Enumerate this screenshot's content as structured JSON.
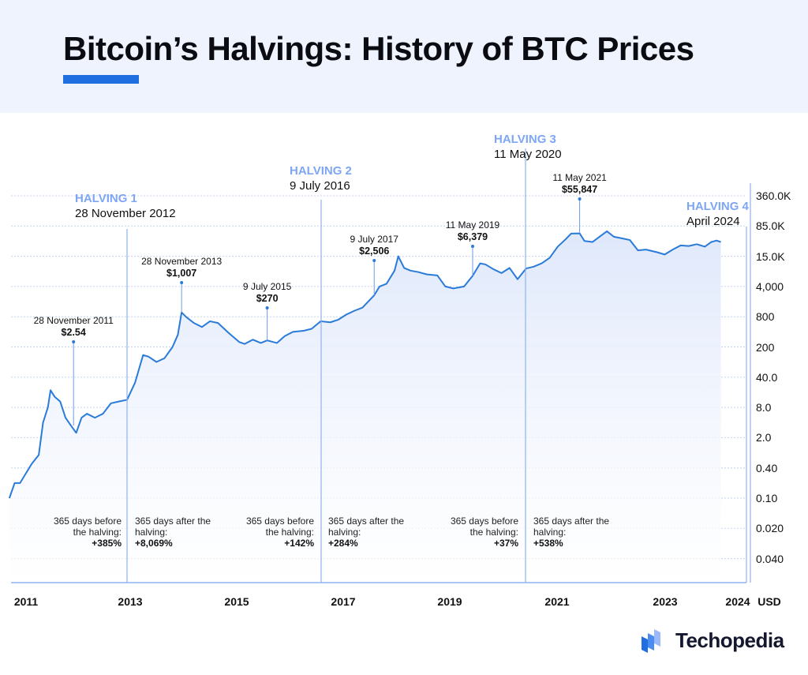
{
  "header": {
    "title": "Bitcoin’s Halvings: History of BTC Prices"
  },
  "brand": {
    "name": "Techopedia",
    "icon": "techopedia-logo-icon"
  },
  "colors": {
    "accent": "#1f6fe0",
    "line": "#2a7bd9",
    "fill": "#dfe8fb",
    "halving_label": "#7ea6f4",
    "header_bg": "#eef3fd"
  },
  "chart_data": {
    "type": "area",
    "title": "Bitcoin’s Halvings: History of BTC Prices",
    "ylabel": "USD",
    "yscale": "log",
    "grid": true,
    "y_ticks": [
      "360.0K",
      "85.0K",
      "15.0K",
      "4,000",
      "800",
      "200",
      "40.0",
      "8.0",
      "2.0",
      "0.40",
      "0.10",
      "0.020",
      "0.040"
    ],
    "x_ticks": [
      "2011",
      "2013",
      "2015",
      "2017",
      "2019",
      "2021",
      "2023",
      "2024"
    ],
    "y_unit_label": "USD",
    "series": [
      {
        "points": [
          [
            2010.7,
            0.1
          ],
          [
            2010.8,
            0.2
          ],
          [
            2010.9,
            0.2
          ],
          [
            2011.0,
            0.3
          ],
          [
            2011.12,
            0.5
          ],
          [
            2011.25,
            0.8
          ],
          [
            2011.33,
            4
          ],
          [
            2011.42,
            8
          ],
          [
            2011.47,
            20
          ],
          [
            2011.55,
            14
          ],
          [
            2011.65,
            11
          ],
          [
            2011.75,
            5
          ],
          [
            2011.85,
            3.5
          ],
          [
            2011.95,
            2.5
          ],
          [
            2012.05,
            5
          ],
          [
            2012.15,
            6
          ],
          [
            2012.3,
            5
          ],
          [
            2012.45,
            6
          ],
          [
            2012.6,
            10
          ],
          [
            2012.75,
            11
          ],
          [
            2012.9,
            12
          ],
          [
            2013.05,
            30
          ],
          [
            2013.2,
            130
          ],
          [
            2013.3,
            120
          ],
          [
            2013.45,
            90
          ],
          [
            2013.6,
            110
          ],
          [
            2013.75,
            200
          ],
          [
            2013.85,
            350
          ],
          [
            2013.92,
            1007
          ],
          [
            2014.0,
            800
          ],
          [
            2014.15,
            600
          ],
          [
            2014.3,
            500
          ],
          [
            2014.45,
            650
          ],
          [
            2014.6,
            600
          ],
          [
            2014.8,
            380
          ],
          [
            2015.0,
            250
          ],
          [
            2015.1,
            230
          ],
          [
            2015.25,
            280
          ],
          [
            2015.4,
            240
          ],
          [
            2015.52,
            270
          ],
          [
            2015.7,
            240
          ],
          [
            2015.85,
            330
          ],
          [
            2016.0,
            400
          ],
          [
            2016.2,
            420
          ],
          [
            2016.35,
            460
          ],
          [
            2016.52,
            650
          ],
          [
            2016.7,
            620
          ],
          [
            2016.85,
            700
          ],
          [
            2017.0,
            900
          ],
          [
            2017.15,
            1100
          ],
          [
            2017.3,
            1300
          ],
          [
            2017.52,
            2506
          ],
          [
            2017.62,
            4000
          ],
          [
            2017.75,
            4500
          ],
          [
            2017.9,
            8000
          ],
          [
            2017.97,
            15000
          ],
          [
            2018.08,
            9000
          ],
          [
            2018.2,
            8000
          ],
          [
            2018.35,
            7500
          ],
          [
            2018.5,
            6800
          ],
          [
            2018.7,
            6500
          ],
          [
            2018.85,
            4000
          ],
          [
            2019.0,
            3600
          ],
          [
            2019.2,
            4000
          ],
          [
            2019.36,
            6379
          ],
          [
            2019.5,
            11000
          ],
          [
            2019.6,
            10500
          ],
          [
            2019.75,
            8500
          ],
          [
            2019.9,
            7200
          ],
          [
            2020.05,
            9000
          ],
          [
            2020.2,
            5500
          ],
          [
            2020.36,
            8800
          ],
          [
            2020.5,
            9500
          ],
          [
            2020.65,
            11000
          ],
          [
            2020.8,
            14000
          ],
          [
            2020.95,
            26000
          ],
          [
            2021.1,
            40000
          ],
          [
            2021.2,
            55000
          ],
          [
            2021.36,
            55847
          ],
          [
            2021.45,
            36000
          ],
          [
            2021.6,
            34000
          ],
          [
            2021.75,
            48000
          ],
          [
            2021.87,
            63000
          ],
          [
            2022.0,
            46000
          ],
          [
            2022.15,
            42000
          ],
          [
            2022.3,
            38000
          ],
          [
            2022.45,
            21000
          ],
          [
            2022.6,
            22000
          ],
          [
            2022.8,
            19000
          ],
          [
            2022.95,
            16600
          ],
          [
            2023.1,
            22000
          ],
          [
            2023.25,
            28000
          ],
          [
            2023.4,
            27000
          ],
          [
            2023.55,
            30000
          ],
          [
            2023.7,
            26000
          ],
          [
            2023.82,
            34000
          ],
          [
            2023.92,
            37000
          ],
          [
            2024.0,
            34000
          ]
        ]
      }
    ],
    "annotations": [
      {
        "date": "28 November 2011",
        "price": "$2.54"
      },
      {
        "date": "28 November 2013",
        "price": "$1,007"
      },
      {
        "date": "9 July 2015",
        "price": "$270"
      },
      {
        "date": "9 July 2017",
        "price": "$2,506"
      },
      {
        "date": "11 May 2019",
        "price": "$6,379"
      },
      {
        "date": "11 May 2021",
        "price": "$55,847"
      }
    ],
    "halvings": [
      {
        "label": "HALVING 1",
        "date": "28 November 2012"
      },
      {
        "label": "HALVING 2",
        "date": "9 July 2016"
      },
      {
        "label": "HALVING 3",
        "date": "11 May 2020"
      },
      {
        "label": "HALVING 4",
        "date": "April 2024"
      }
    ],
    "notes": [
      {
        "text": "365 days before the halving:",
        "value": "+385%"
      },
      {
        "text": "365 days after the halving:",
        "value": "+8,069%"
      },
      {
        "text": "365 days before the halving:",
        "value": "+142%"
      },
      {
        "text": "365 days after the halving:",
        "value": "+284%"
      },
      {
        "text": "365 days before the halving:",
        "value": "+37%"
      },
      {
        "text": "365 days after the halving:",
        "value": "+538%"
      }
    ]
  }
}
